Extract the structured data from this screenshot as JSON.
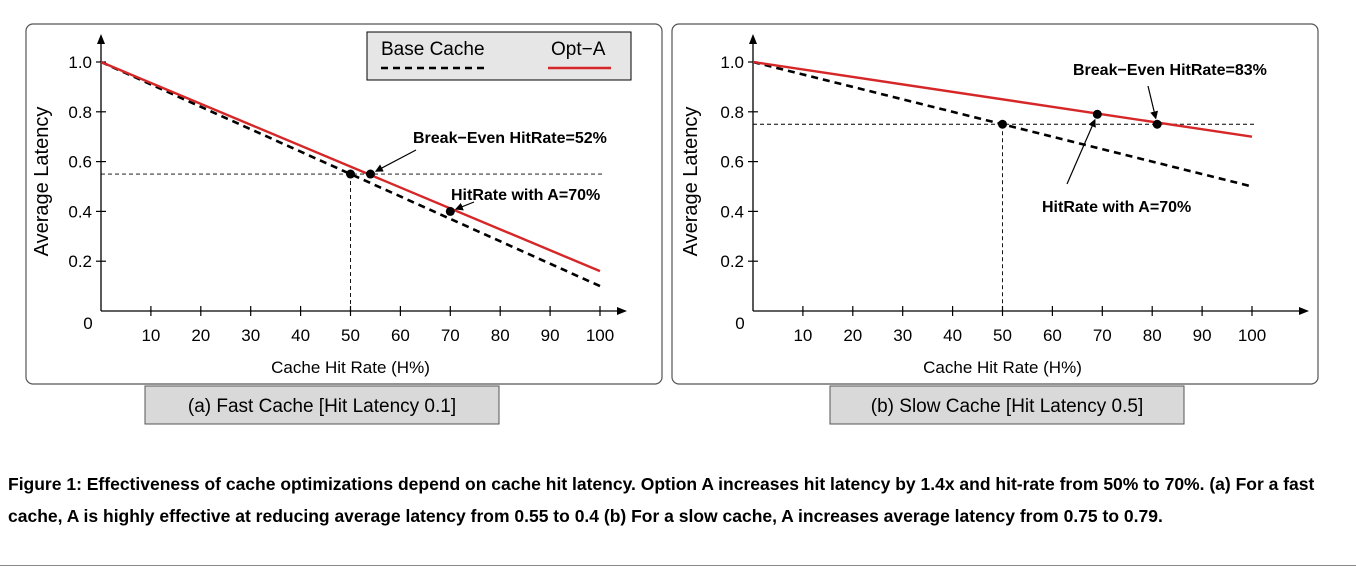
{
  "chart_data": [
    {
      "type": "line",
      "panel_caption": "(a) Fast Cache [Hit Latency 0.1]",
      "title": "",
      "xlabel": "Cache Hit Rate (H%)",
      "ylabel": "Average Latency",
      "xlim": [
        0,
        100
      ],
      "ylim": [
        0,
        1.0
      ],
      "x_ticks": [
        10,
        20,
        30,
        40,
        50,
        60,
        70,
        80,
        90,
        100
      ],
      "y_ticks": [
        0.2,
        0.4,
        0.6,
        0.8,
        1.0
      ],
      "origin_label": "0",
      "legend_position": "top-right",
      "series": [
        {
          "name": "Base Cache",
          "style": "dashed",
          "color": "#000000",
          "x": [
            0,
            100
          ],
          "y": [
            1.0,
            0.1
          ]
        },
        {
          "name": "Opt−A",
          "style": "solid",
          "color": "#d62728",
          "x": [
            0,
            100
          ],
          "y": [
            1.0,
            0.16
          ]
        }
      ],
      "points": [
        {
          "x": 50,
          "y": 0.55
        },
        {
          "x": 54,
          "y": 0.55
        },
        {
          "x": 70,
          "y": 0.4
        }
      ],
      "guides": [
        {
          "x": 50,
          "y": 0.55
        }
      ],
      "annotations": [
        {
          "text": "Break−Even HitRate=52%",
          "target": {
            "x": 54,
            "y": 0.55
          }
        },
        {
          "text": "HitRate with A=70%",
          "target": {
            "x": 70,
            "y": 0.4
          }
        }
      ]
    },
    {
      "type": "line",
      "panel_caption": "(b) Slow Cache [Hit Latency 0.5]",
      "title": "",
      "xlabel": "Cache Hit Rate (H%)",
      "ylabel": "Average Latency",
      "xlim": [
        0,
        100
      ],
      "ylim": [
        0,
        1.0
      ],
      "x_ticks": [
        10,
        20,
        30,
        40,
        50,
        60,
        70,
        80,
        90,
        100
      ],
      "y_ticks": [
        0.2,
        0.4,
        0.6,
        0.8,
        1.0
      ],
      "origin_label": "0",
      "series": [
        {
          "name": "Base Cache",
          "style": "dashed",
          "color": "#000000",
          "x": [
            0,
            100
          ],
          "y": [
            1.0,
            0.5
          ]
        },
        {
          "name": "Opt−A",
          "style": "solid",
          "color": "#d62728",
          "x": [
            0,
            100
          ],
          "y": [
            1.0,
            0.7
          ]
        }
      ],
      "points": [
        {
          "x": 50,
          "y": 0.75
        },
        {
          "x": 69,
          "y": 0.79
        },
        {
          "x": 81,
          "y": 0.75
        }
      ],
      "guides": [
        {
          "x": 50,
          "y": 0.75
        }
      ],
      "annotations": [
        {
          "text": "Break−Even HitRate=83%",
          "target": {
            "x": 81,
            "y": 0.75
          }
        },
        {
          "text": "HitRate with A=70%",
          "target": {
            "x": 69,
            "y": 0.79
          }
        }
      ]
    }
  ],
  "legend": {
    "items": [
      {
        "label": "Base Cache",
        "style": "dashed",
        "color": "#000000"
      },
      {
        "label": "Opt−A",
        "style": "solid",
        "color": "#d62728"
      }
    ]
  },
  "figure_caption": "Figure 1: Effectiveness of cache optimizations depend on cache hit latency. Option A increases hit latency by 1.4x and hit-rate from 50% to 70%. (a) For a fast cache, A is highly effective at reducing average latency from 0.55 to 0.4 (b) For a slow cache, A increases average latency from 0.75 to 0.79."
}
